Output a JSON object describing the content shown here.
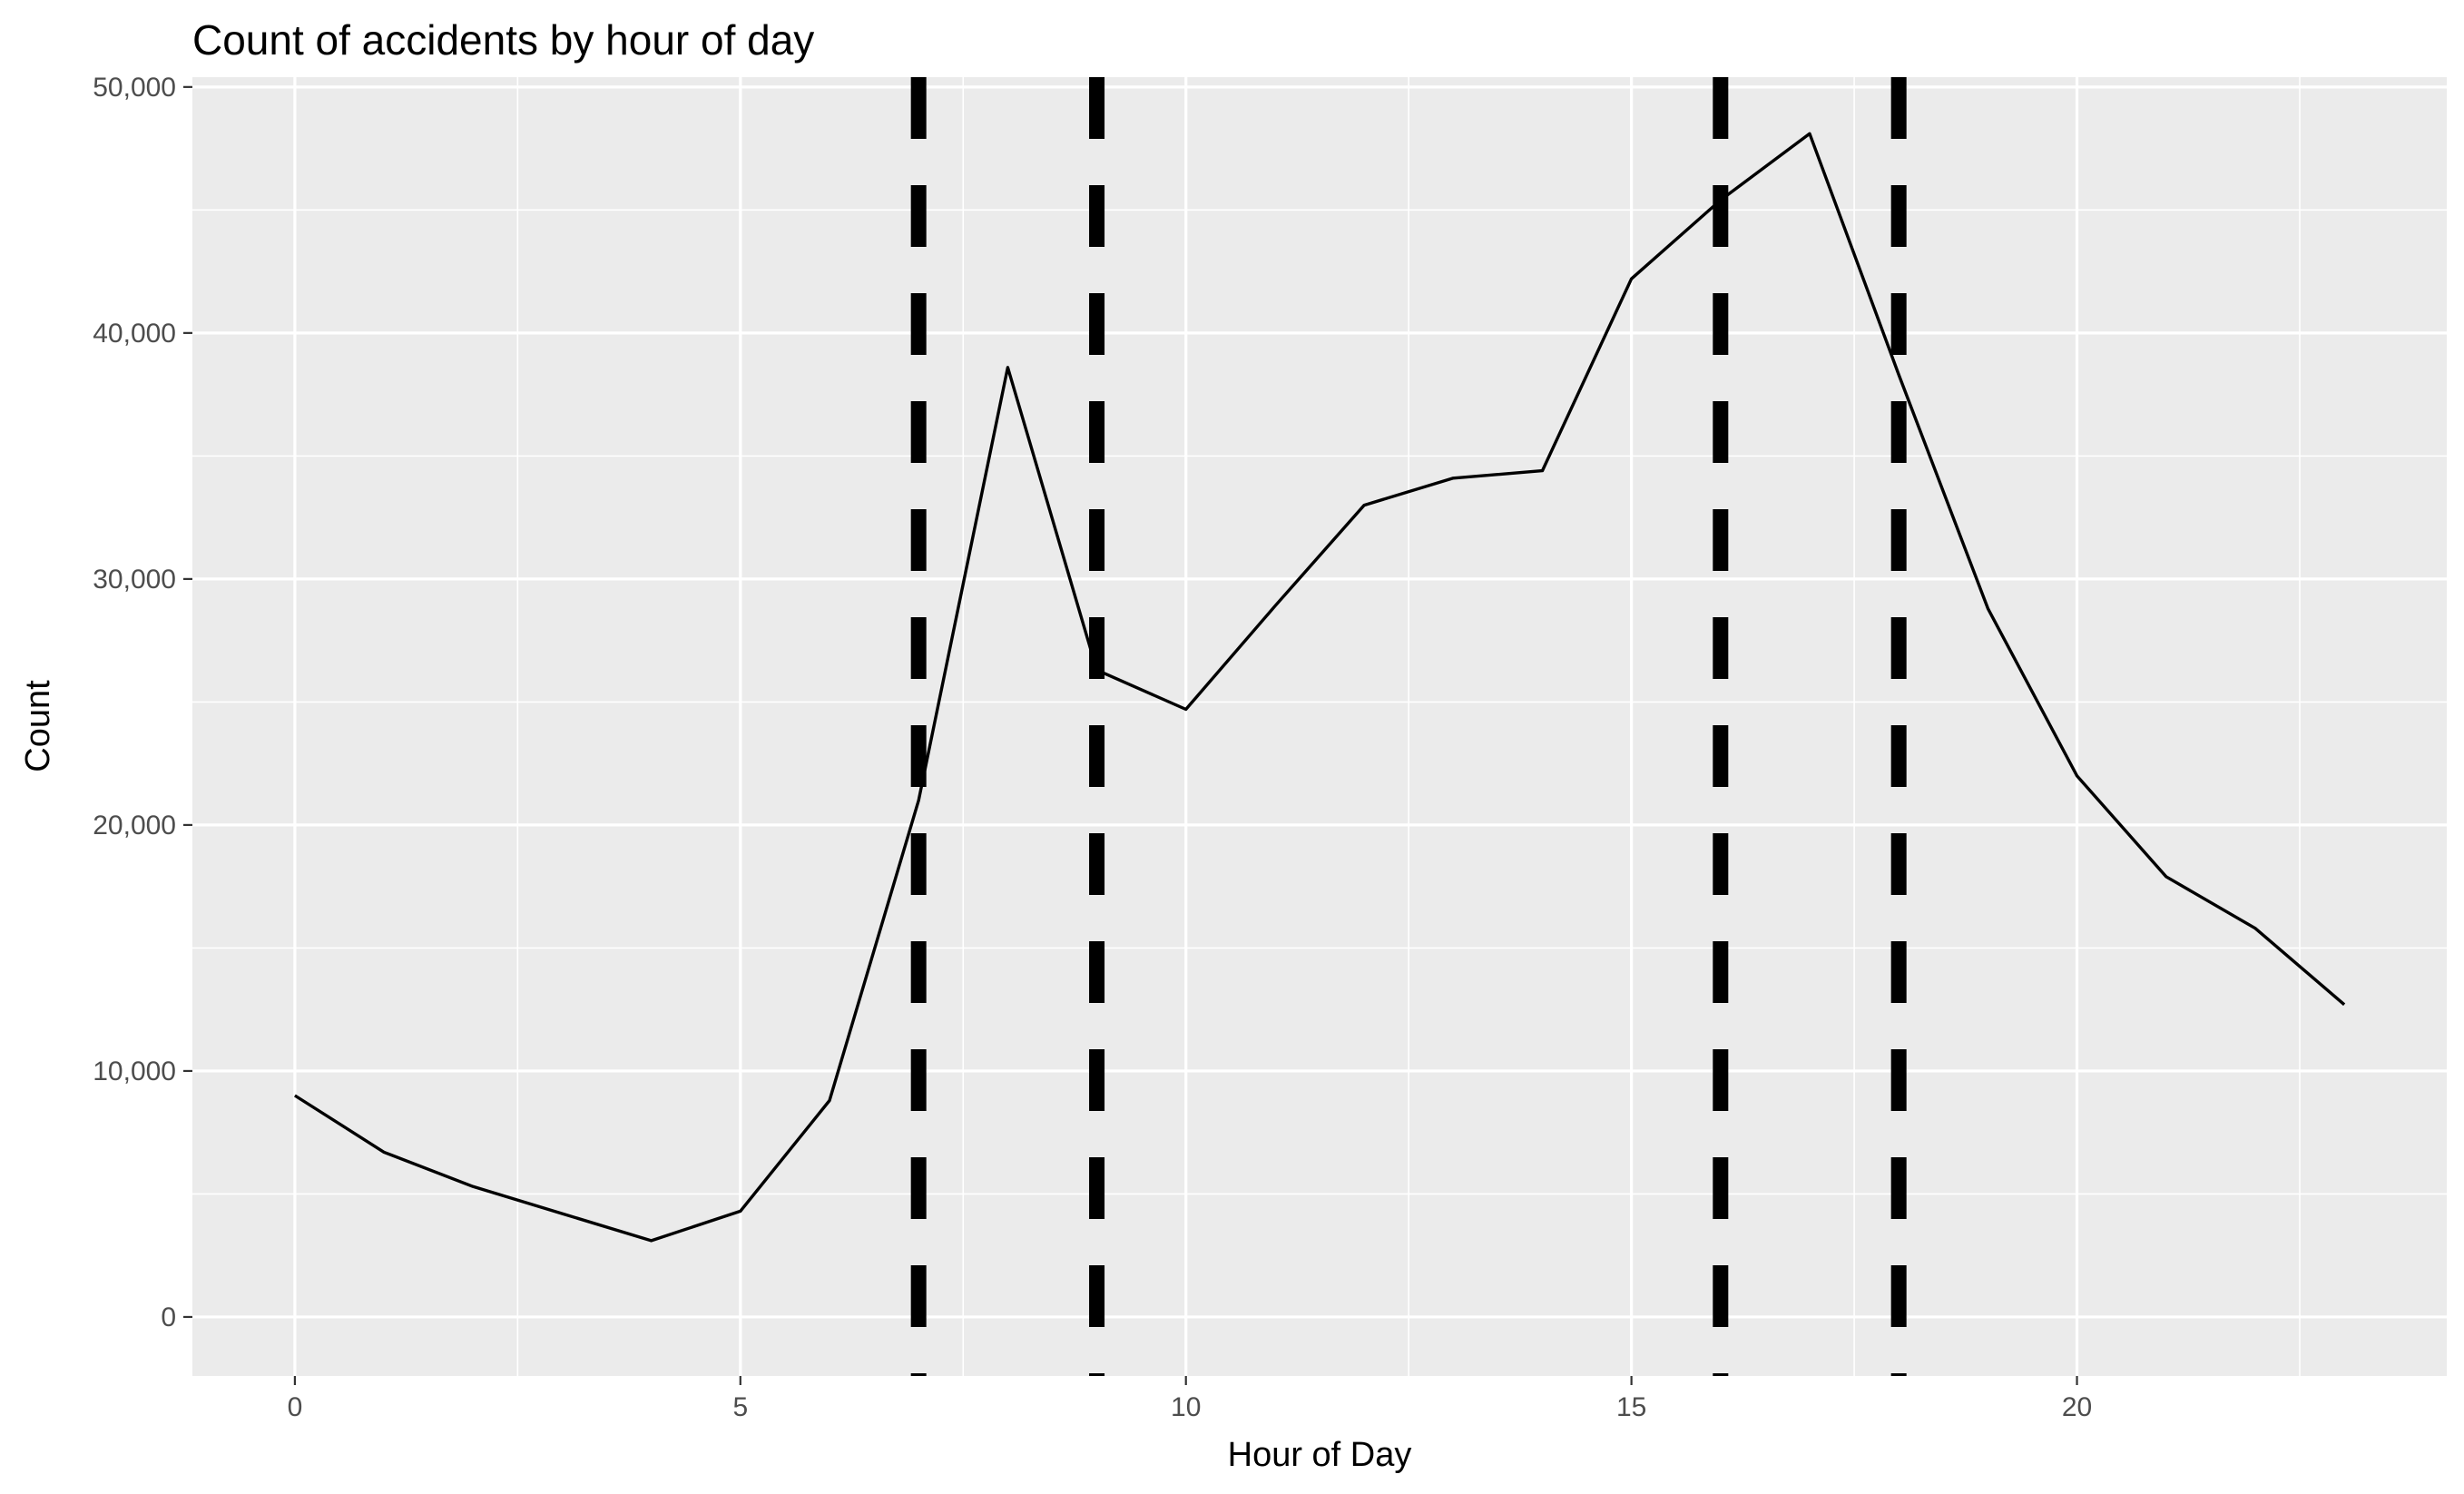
{
  "chart_data": {
    "type": "line",
    "title": "Count of accidents by hour of day",
    "xlabel": "Hour of Day",
    "ylabel": "Count",
    "xlim": [
      -1.15,
      24.15
    ],
    "ylim": [
      -2400,
      50400
    ],
    "x_ticks": [
      0,
      5,
      10,
      15,
      20
    ],
    "x_tick_labels": [
      "0",
      "5",
      "10",
      "15",
      "20"
    ],
    "y_ticks": [
      0,
      10000,
      20000,
      30000,
      40000,
      50000
    ],
    "y_tick_labels": [
      "0",
      "10,000",
      "20,000",
      "30,000",
      "40,000",
      "50,000"
    ],
    "grid": true,
    "legend": "none",
    "series": [
      {
        "x": [
          0,
          1,
          2,
          3,
          4,
          5,
          6,
          7,
          8,
          9,
          10,
          11,
          12,
          13,
          14,
          15,
          16,
          17,
          18,
          19,
          20,
          21,
          22,
          23
        ],
        "values": [
          9000,
          6700,
          5300,
          4200,
          3100,
          4300,
          8800,
          21000,
          38600,
          26300,
          24700,
          28900,
          33000,
          34100,
          34400,
          42200,
          45400,
          48100,
          38300,
          28800,
          22000,
          17900,
          15800,
          12700
        ],
        "color": "#000000"
      }
    ],
    "reference_lines": {
      "orientation": "vertical",
      "style": "dashed",
      "color": "#000000",
      "x": [
        7,
        9,
        16,
        18
      ]
    }
  }
}
